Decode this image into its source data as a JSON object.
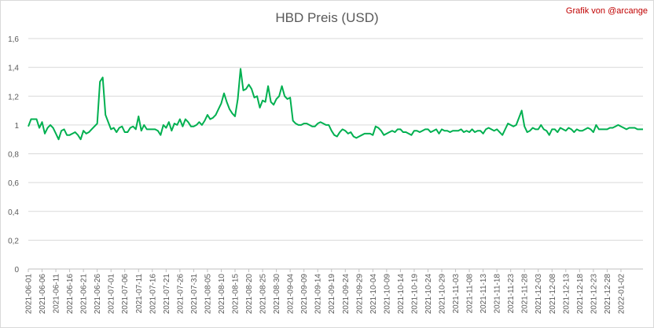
{
  "chart_data": {
    "type": "line",
    "title": "HBD Preis (USD)",
    "credit": "Grafik von @arcange",
    "xlabel": "",
    "ylabel": "",
    "ylim": [
      0,
      1.6
    ],
    "yticks": [
      "0",
      "0,2",
      "0,4",
      "0,6",
      "0,8",
      "1",
      "1,2",
      "1,4",
      "1,6"
    ],
    "ytick_values": [
      0,
      0.2,
      0.4,
      0.6,
      0.8,
      1.0,
      1.2,
      1.4,
      1.6
    ],
    "grid": "horizontal",
    "line_color": "#00b050",
    "x_start": "2021-06-01",
    "x_end": "2022-01-02",
    "xtick_labels": [
      "2021-06-01",
      "2021-06-06",
      "2021-06-11",
      "2021-06-16",
      "2021-06-21",
      "2021-06-26",
      "2021-07-01",
      "2021-07-06",
      "2021-07-11",
      "2021-07-16",
      "2021-07-21",
      "2021-07-26",
      "2021-07-31",
      "2021-08-05",
      "2021-08-10",
      "2021-08-15",
      "2021-08-20",
      "2021-08-25",
      "2021-08-30",
      "2021-09-04",
      "2021-09-09",
      "2021-09-14",
      "2021-09-19",
      "2021-09-24",
      "2021-09-29",
      "2021-10-04",
      "2021-10-09",
      "2021-10-14",
      "2021-10-19",
      "2021-10-24",
      "2021-10-29",
      "2021-11-03",
      "2021-11-08",
      "2021-11-13",
      "2021-11-18",
      "2021-11-23",
      "2021-11-28",
      "2021-12-03",
      "2021-12-08",
      "2021-12-13",
      "2021-12-18",
      "2021-12-23",
      "2021-12-28",
      "2022-01-02"
    ],
    "series": [
      {
        "values": [
          0.99,
          1.04,
          1.04,
          1.04,
          0.98,
          1.02,
          0.94,
          0.98,
          1.0,
          0.98,
          0.94,
          0.9,
          0.96,
          0.97,
          0.93,
          0.93,
          0.94,
          0.95,
          0.93,
          0.9,
          0.96,
          0.94,
          0.95,
          0.97,
          0.99,
          1.01,
          1.3,
          1.33,
          1.07,
          1.02,
          0.97,
          0.98,
          0.95,
          0.98,
          0.99,
          0.95,
          0.95,
          0.98,
          0.99,
          0.97,
          1.06,
          0.96,
          1.0,
          0.97,
          0.97,
          0.97,
          0.97,
          0.96,
          0.93,
          1.0,
          0.98,
          1.02,
          0.96,
          1.01,
          1.0,
          1.04,
          0.99,
          1.04,
          1.02,
          0.99,
          0.99,
          1.0,
          1.02,
          1.0,
          1.03,
          1.07,
          1.04,
          1.05,
          1.07,
          1.11,
          1.15,
          1.22,
          1.16,
          1.11,
          1.08,
          1.06,
          1.18,
          1.39,
          1.24,
          1.25,
          1.28,
          1.25,
          1.19,
          1.2,
          1.12,
          1.17,
          1.16,
          1.27,
          1.16,
          1.14,
          1.18,
          1.2,
          1.27,
          1.2,
          1.18,
          1.19,
          1.03,
          1.01,
          1.0,
          1.0,
          1.01,
          1.01,
          1.0,
          0.99,
          0.99,
          1.01,
          1.02,
          1.01,
          1.0,
          1.0,
          0.96,
          0.93,
          0.92,
          0.95,
          0.97,
          0.96,
          0.94,
          0.95,
          0.92,
          0.91,
          0.92,
          0.93,
          0.94,
          0.94,
          0.94,
          0.93,
          0.99,
          0.98,
          0.96,
          0.93,
          0.94,
          0.95,
          0.96,
          0.95,
          0.97,
          0.97,
          0.95,
          0.95,
          0.94,
          0.93,
          0.96,
          0.96,
          0.95,
          0.96,
          0.97,
          0.97,
          0.95,
          0.96,
          0.97,
          0.94,
          0.97,
          0.96,
          0.96,
          0.95,
          0.96,
          0.96,
          0.96,
          0.97,
          0.95,
          0.96,
          0.95,
          0.97,
          0.95,
          0.96,
          0.96,
          0.94,
          0.97,
          0.98,
          0.97,
          0.96,
          0.97,
          0.95,
          0.93,
          0.97,
          1.01,
          1.0,
          0.99,
          1.0,
          1.05,
          1.1,
          0.99,
          0.95,
          0.96,
          0.98,
          0.97,
          0.97,
          1.0,
          0.97,
          0.96,
          0.93,
          0.97,
          0.97,
          0.95,
          0.98,
          0.97,
          0.96,
          0.98,
          0.97,
          0.95,
          0.97,
          0.96,
          0.96,
          0.97,
          0.98,
          0.97,
          0.95,
          1.0,
          0.97,
          0.97,
          0.97,
          0.97,
          0.98,
          0.98,
          0.99,
          1.0,
          0.99,
          0.98,
          0.97,
          0.98,
          0.98,
          0.98,
          0.97,
          0.97,
          0.97
        ]
      }
    ]
  }
}
